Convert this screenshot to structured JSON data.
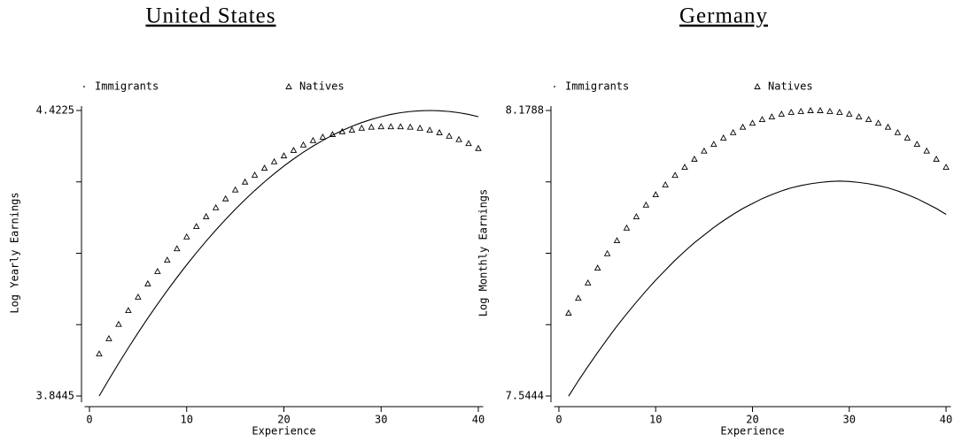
{
  "chart_data": [
    {
      "type": "line",
      "title": "United States",
      "x_label": "Experience",
      "y_label": "Log Yearly Earnings",
      "x": [
        1,
        2,
        3,
        4,
        5,
        6,
        7,
        8,
        9,
        10,
        11,
        12,
        13,
        14,
        15,
        16,
        17,
        18,
        19,
        20,
        21,
        22,
        23,
        24,
        25,
        26,
        27,
        28,
        29,
        30,
        31,
        32,
        33,
        34,
        35,
        36,
        37,
        38,
        39,
        40
      ],
      "series": [
        {
          "name": "Immigrants",
          "color": "#000000",
          "marker": "dot",
          "values": [
            3.8445,
            3.878,
            3.9105,
            3.942,
            3.9725,
            4.002,
            4.0305,
            4.058,
            4.0845,
            4.11,
            4.1345,
            4.158,
            4.1805,
            4.202,
            4.2225,
            4.242,
            4.2605,
            4.278,
            4.2945,
            4.31,
            4.3245,
            4.338,
            4.3505,
            4.362,
            4.3725,
            4.382,
            4.3905,
            4.398,
            4.4045,
            4.41,
            4.4145,
            4.418,
            4.4205,
            4.422,
            4.4225,
            4.422,
            4.4205,
            4.418,
            4.4145,
            4.41
          ]
        },
        {
          "name": "Natives",
          "color": "#000000",
          "marker": "triangle",
          "values": [
            3.93,
            3.961,
            3.99,
            4.018,
            4.045,
            4.072,
            4.097,
            4.12,
            4.143,
            4.167,
            4.188,
            4.208,
            4.226,
            4.244,
            4.262,
            4.278,
            4.292,
            4.306,
            4.319,
            4.331,
            4.342,
            4.353,
            4.362,
            4.369,
            4.374,
            4.38,
            4.383,
            4.387,
            4.389,
            4.39,
            4.39,
            4.39,
            4.389,
            4.387,
            4.383,
            4.378,
            4.371,
            4.364,
            4.356,
            4.346
          ]
        }
      ],
      "xlim": [
        -0.5,
        40.5
      ],
      "xticks": [
        0,
        10,
        20,
        30,
        40
      ],
      "ylim": [
        3.8445,
        4.4225
      ],
      "yticks": [
        3.8445,
        4.4225
      ],
      "minor_yticks": [
        3.989,
        4.1335,
        4.278
      ]
    },
    {
      "type": "line",
      "title": "Germany",
      "x_label": "Experience",
      "y_label": "Log Monthly Earnings",
      "x": [
        1,
        2,
        3,
        4,
        5,
        6,
        7,
        8,
        9,
        10,
        11,
        12,
        13,
        14,
        15,
        16,
        17,
        18,
        19,
        20,
        21,
        22,
        23,
        24,
        25,
        26,
        27,
        28,
        29,
        30,
        31,
        32,
        33,
        34,
        35,
        36,
        37,
        38,
        39,
        40
      ],
      "series": [
        {
          "name": "Immigrants",
          "color": "#000000",
          "marker": "dot",
          "values": [
            7.544,
            7.578,
            7.61,
            7.641,
            7.671,
            7.7,
            7.727,
            7.753,
            7.778,
            7.802,
            7.824,
            7.846,
            7.866,
            7.885,
            7.902,
            7.919,
            7.934,
            7.948,
            7.961,
            7.972,
            7.983,
            7.992,
            8.0,
            8.007,
            8.012,
            8.016,
            8.019,
            8.021,
            8.022,
            8.021,
            8.019,
            8.016,
            8.012,
            8.007,
            8.0,
            7.992,
            7.983,
            7.972,
            7.961,
            7.948
          ]
        },
        {
          "name": "Natives",
          "color": "#000000",
          "marker": "triangle",
          "values": [
            7.729,
            7.762,
            7.796,
            7.829,
            7.861,
            7.89,
            7.918,
            7.943,
            7.969,
            7.992,
            8.014,
            8.035,
            8.053,
            8.071,
            8.089,
            8.104,
            8.118,
            8.13,
            8.142,
            8.151,
            8.159,
            8.165,
            8.171,
            8.175,
            8.177,
            8.1788,
            8.1788,
            8.177,
            8.175,
            8.171,
            8.165,
            8.159,
            8.151,
            8.142,
            8.13,
            8.118,
            8.104,
            8.089,
            8.071,
            8.053
          ]
        }
      ],
      "xlim": [
        -0.5,
        40.5
      ],
      "xticks": [
        0,
        10,
        20,
        30,
        40
      ],
      "ylim": [
        7.5444,
        8.1788
      ],
      "yticks": [
        7.5444,
        8.1788
      ],
      "minor_yticks": [
        7.703,
        7.8616,
        8.0202
      ]
    }
  ]
}
